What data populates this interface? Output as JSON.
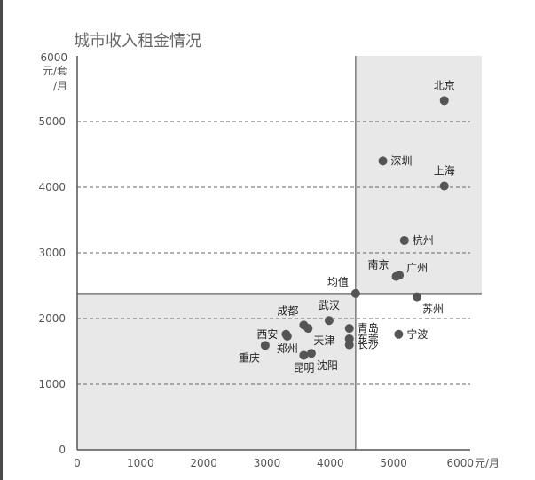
{
  "chart_data": {
    "type": "scatter",
    "title": "城市收入租金情况",
    "y_unit_lines": [
      "6000",
      "元/套",
      "/月"
    ],
    "x_unit": "元/月",
    "xlim": [
      0,
      6000
    ],
    "ylim": [
      0,
      6000
    ],
    "x_ticks": [
      0,
      1000,
      2000,
      3000,
      4000,
      5000,
      6000
    ],
    "x_tick_labels": [
      "0",
      "1000",
      "2000",
      "3000",
      "4000",
      "5000",
      "6000"
    ],
    "y_ticks": [
      0,
      1000,
      2000,
      3000,
      4000,
      5000
    ],
    "y_tick_labels": [
      "0",
      "1000",
      "2000",
      "3000",
      "4000",
      "5000"
    ],
    "gridlines": "dashed horizontal at y ticks",
    "reference_lines": {
      "x": 4400,
      "y": 2380
    },
    "shaded_quadrants": [
      "upper-right",
      "lower-left"
    ],
    "points": [
      {
        "label": "北京",
        "x": 5800,
        "y": 5320,
        "label_pos": "above"
      },
      {
        "label": "深圳",
        "x": 4830,
        "y": 4400,
        "label_pos": "right"
      },
      {
        "label": "上海",
        "x": 5800,
        "y": 4020,
        "label_pos": "above"
      },
      {
        "label": "杭州",
        "x": 5170,
        "y": 3190,
        "label_pos": "right"
      },
      {
        "label": "南京",
        "x": 5040,
        "y": 2640,
        "label_pos": "left-up"
      },
      {
        "label": "广州",
        "x": 5090,
        "y": 2660,
        "label_pos": "right-up"
      },
      {
        "label": "苏州",
        "x": 5370,
        "y": 2330,
        "label_pos": "below-right"
      },
      {
        "label": "均值",
        "x": 4400,
        "y": 2380,
        "label_pos": "left-up"
      },
      {
        "label": "成都",
        "x": 3580,
        "y": 1900,
        "label_pos": "above-left"
      },
      {
        "label": "武汉",
        "x": 3980,
        "y": 1970,
        "label_pos": "above"
      },
      {
        "label": "西安",
        "x": 3300,
        "y": 1760,
        "label_pos": "left"
      },
      {
        "label": "天津",
        "x": 3650,
        "y": 1850,
        "label_pos": "below-right"
      },
      {
        "label": "郑州",
        "x": 3320,
        "y": 1730,
        "label_pos": "below"
      },
      {
        "label": "重庆",
        "x": 2970,
        "y": 1590,
        "label_pos": "below-left"
      },
      {
        "label": "青岛",
        "x": 4300,
        "y": 1850,
        "label_pos": "right"
      },
      {
        "label": "东莞",
        "x": 4300,
        "y": 1690,
        "label_pos": "right"
      },
      {
        "label": "长沙",
        "x": 4300,
        "y": 1600,
        "label_pos": "right"
      },
      {
        "label": "宁波",
        "x": 5080,
        "y": 1760,
        "label_pos": "right"
      },
      {
        "label": "昆明",
        "x": 3580,
        "y": 1440,
        "label_pos": "below"
      },
      {
        "label": "沈阳",
        "x": 3700,
        "y": 1470,
        "label_pos": "below-right"
      }
    ]
  }
}
